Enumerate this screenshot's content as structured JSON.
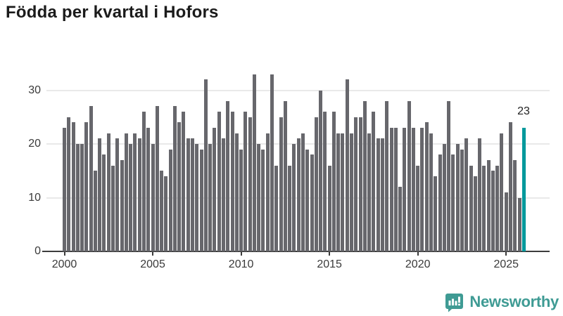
{
  "title": "Födda per kvartal i Hofors",
  "chart_data": {
    "type": "bar",
    "title": "Födda per kvartal i Hofors",
    "x_unit": "quarter",
    "start_period": "2000-Q1",
    "end_period": "2026-Q1",
    "x_ticks": [
      2000,
      2005,
      2010,
      2015,
      2020,
      2025
    ],
    "y_ticks": [
      0,
      10,
      20,
      30
    ],
    "ylim": [
      0,
      34
    ],
    "grid": "horizontal",
    "legend_position": "none",
    "values": [
      23,
      25,
      24,
      20,
      20,
      24,
      27,
      15,
      21,
      18,
      22,
      16,
      21,
      17,
      22,
      20,
      22,
      21,
      26,
      23,
      20,
      27,
      15,
      14,
      19,
      27,
      24,
      26,
      21,
      21,
      20,
      19,
      32,
      20,
      23,
      26,
      21,
      28,
      26,
      22,
      19,
      26,
      25,
      33,
      20,
      19,
      22,
      33,
      16,
      25,
      28,
      16,
      20,
      21,
      22,
      19,
      18,
      25,
      30,
      26,
      16,
      26,
      22,
      22,
      32,
      22,
      25,
      25,
      28,
      22,
      26,
      21,
      21,
      28,
      23,
      23,
      12,
      23,
      28,
      23,
      16,
      23,
      24,
      22,
      14,
      18,
      20,
      28,
      18,
      20,
      19,
      21,
      16,
      14,
      21,
      16,
      17,
      15,
      16,
      22,
      11,
      24,
      17,
      10,
      23
    ],
    "highlight_index": 104,
    "highlight_label": "23"
  },
  "colors": {
    "bar": "#67676c",
    "highlight": "#00999c",
    "gridline": "#e9e9e9",
    "axis_line": "#3c3c3c",
    "axis_text": "#3a3a3a",
    "title_text": "#1b1b1b",
    "brand_teal": "#3f9b94"
  },
  "footer": {
    "brand": "Newsworthy"
  }
}
